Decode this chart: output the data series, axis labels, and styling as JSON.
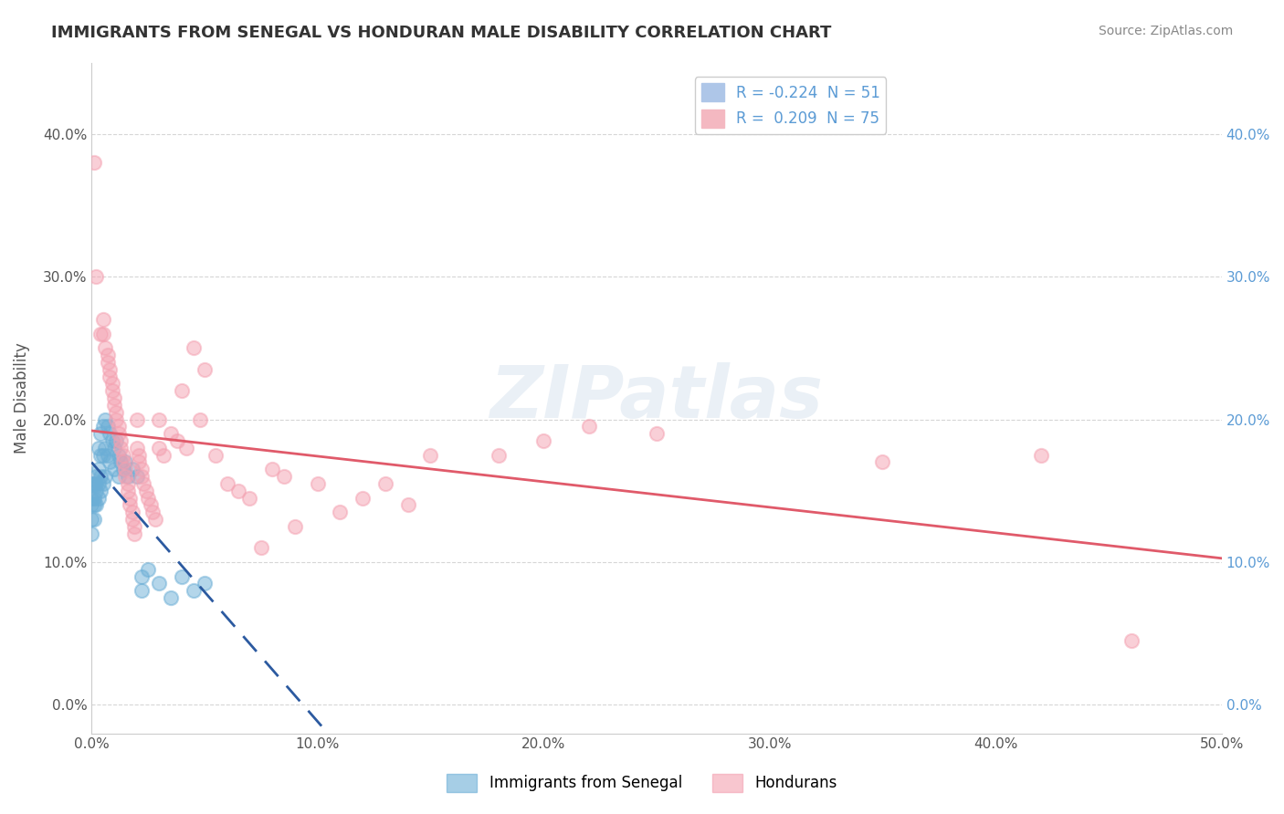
{
  "title": "IMMIGRANTS FROM SENEGAL VS HONDURAN MALE DISABILITY CORRELATION CHART",
  "source": "Source: ZipAtlas.com",
  "ylabel": "Male Disability",
  "xlim": [
    0.0,
    0.5
  ],
  "ylim": [
    -0.02,
    0.45
  ],
  "yticks": [
    0.0,
    0.1,
    0.2,
    0.3,
    0.4
  ],
  "ytick_labels": [
    "0.0%",
    "10.0%",
    "20.0%",
    "30.0%",
    "40.0%"
  ],
  "xticks": [
    0.0,
    0.1,
    0.2,
    0.3,
    0.4,
    0.5
  ],
  "xtick_labels": [
    "0.0%",
    "10.0%",
    "20.0%",
    "30.0%",
    "40.0%",
    "50.0%"
  ],
  "legend_entries": [
    {
      "label": "R = -0.224  N = 51",
      "color": "#aec6e8"
    },
    {
      "label": "R =  0.209  N = 75",
      "color": "#f4b8c1"
    }
  ],
  "senegal_color": "#6baed6",
  "honduran_color": "#f4a0b0",
  "senegal_line_color": "#2c5aa0",
  "honduran_line_color": "#e05a6a",
  "watermark": "ZIPatlas",
  "senegal_points": [
    [
      0.0,
      0.145
    ],
    [
      0.0,
      0.155
    ],
    [
      0.0,
      0.14
    ],
    [
      0.0,
      0.12
    ],
    [
      0.0,
      0.13
    ],
    [
      0.001,
      0.155
    ],
    [
      0.001,
      0.145
    ],
    [
      0.001,
      0.14
    ],
    [
      0.001,
      0.13
    ],
    [
      0.002,
      0.16
    ],
    [
      0.002,
      0.155
    ],
    [
      0.002,
      0.15
    ],
    [
      0.002,
      0.14
    ],
    [
      0.003,
      0.18
    ],
    [
      0.003,
      0.165
    ],
    [
      0.003,
      0.155
    ],
    [
      0.003,
      0.145
    ],
    [
      0.004,
      0.19
    ],
    [
      0.004,
      0.175
    ],
    [
      0.004,
      0.16
    ],
    [
      0.004,
      0.15
    ],
    [
      0.005,
      0.195
    ],
    [
      0.005,
      0.175
    ],
    [
      0.005,
      0.155
    ],
    [
      0.006,
      0.2
    ],
    [
      0.006,
      0.18
    ],
    [
      0.006,
      0.16
    ],
    [
      0.007,
      0.195
    ],
    [
      0.007,
      0.175
    ],
    [
      0.008,
      0.19
    ],
    [
      0.008,
      0.17
    ],
    [
      0.009,
      0.185
    ],
    [
      0.01,
      0.18
    ],
    [
      0.01,
      0.165
    ],
    [
      0.011,
      0.185
    ],
    [
      0.012,
      0.175
    ],
    [
      0.012,
      0.16
    ],
    [
      0.013,
      0.17
    ],
    [
      0.014,
      0.165
    ],
    [
      0.015,
      0.17
    ],
    [
      0.016,
      0.16
    ],
    [
      0.018,
      0.165
    ],
    [
      0.02,
      0.16
    ],
    [
      0.022,
      0.09
    ],
    [
      0.022,
      0.08
    ],
    [
      0.025,
      0.095
    ],
    [
      0.03,
      0.085
    ],
    [
      0.035,
      0.075
    ],
    [
      0.04,
      0.09
    ],
    [
      0.045,
      0.08
    ],
    [
      0.05,
      0.085
    ]
  ],
  "honduran_points": [
    [
      0.001,
      0.38
    ],
    [
      0.002,
      0.3
    ],
    [
      0.004,
      0.26
    ],
    [
      0.005,
      0.27
    ],
    [
      0.005,
      0.26
    ],
    [
      0.006,
      0.25
    ],
    [
      0.007,
      0.245
    ],
    [
      0.007,
      0.24
    ],
    [
      0.008,
      0.235
    ],
    [
      0.008,
      0.23
    ],
    [
      0.009,
      0.225
    ],
    [
      0.009,
      0.22
    ],
    [
      0.01,
      0.215
    ],
    [
      0.01,
      0.21
    ],
    [
      0.011,
      0.205
    ],
    [
      0.011,
      0.2
    ],
    [
      0.012,
      0.195
    ],
    [
      0.012,
      0.19
    ],
    [
      0.013,
      0.185
    ],
    [
      0.013,
      0.18
    ],
    [
      0.014,
      0.175
    ],
    [
      0.014,
      0.17
    ],
    [
      0.015,
      0.165
    ],
    [
      0.015,
      0.16
    ],
    [
      0.016,
      0.155
    ],
    [
      0.016,
      0.15
    ],
    [
      0.017,
      0.145
    ],
    [
      0.017,
      0.14
    ],
    [
      0.018,
      0.135
    ],
    [
      0.018,
      0.13
    ],
    [
      0.019,
      0.125
    ],
    [
      0.019,
      0.12
    ],
    [
      0.02,
      0.2
    ],
    [
      0.02,
      0.18
    ],
    [
      0.021,
      0.175
    ],
    [
      0.021,
      0.17
    ],
    [
      0.022,
      0.165
    ],
    [
      0.022,
      0.16
    ],
    [
      0.023,
      0.155
    ],
    [
      0.024,
      0.15
    ],
    [
      0.025,
      0.145
    ],
    [
      0.026,
      0.14
    ],
    [
      0.027,
      0.135
    ],
    [
      0.028,
      0.13
    ],
    [
      0.03,
      0.2
    ],
    [
      0.03,
      0.18
    ],
    [
      0.032,
      0.175
    ],
    [
      0.035,
      0.19
    ],
    [
      0.038,
      0.185
    ],
    [
      0.04,
      0.22
    ],
    [
      0.042,
      0.18
    ],
    [
      0.045,
      0.25
    ],
    [
      0.048,
      0.2
    ],
    [
      0.05,
      0.235
    ],
    [
      0.055,
      0.175
    ],
    [
      0.06,
      0.155
    ],
    [
      0.065,
      0.15
    ],
    [
      0.07,
      0.145
    ],
    [
      0.075,
      0.11
    ],
    [
      0.08,
      0.165
    ],
    [
      0.085,
      0.16
    ],
    [
      0.09,
      0.125
    ],
    [
      0.1,
      0.155
    ],
    [
      0.11,
      0.135
    ],
    [
      0.12,
      0.145
    ],
    [
      0.13,
      0.155
    ],
    [
      0.14,
      0.14
    ],
    [
      0.15,
      0.175
    ],
    [
      0.18,
      0.175
    ],
    [
      0.2,
      0.185
    ],
    [
      0.22,
      0.195
    ],
    [
      0.25,
      0.19
    ],
    [
      0.35,
      0.17
    ],
    [
      0.42,
      0.175
    ],
    [
      0.46,
      0.045
    ]
  ],
  "background_color": "#ffffff",
  "grid_color": "#cccccc",
  "right_tick_color": "#5b9bd5"
}
